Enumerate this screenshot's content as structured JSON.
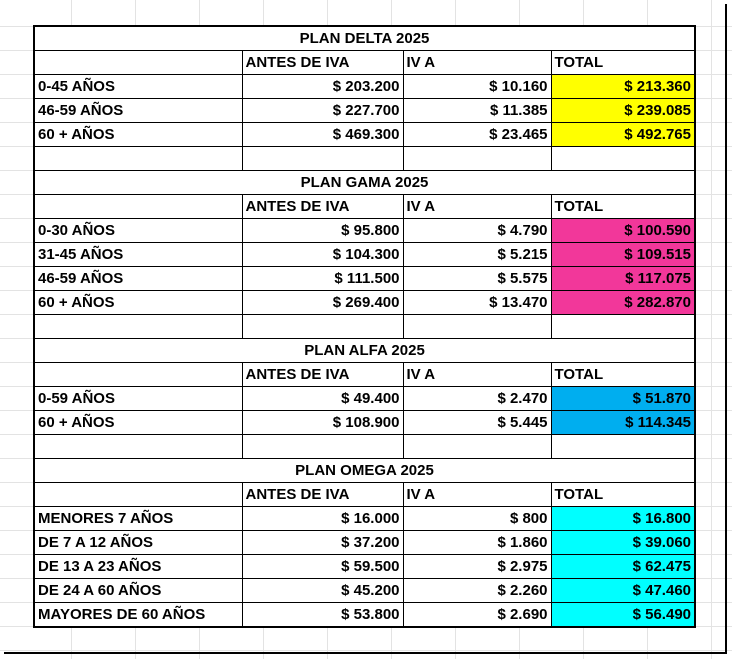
{
  "plans": [
    {
      "title": "PLAN DELTA 2025",
      "headers": [
        "ANTES DE IVA",
        "IV A",
        "TOTAL"
      ],
      "total_color": "#ffff00",
      "rows": [
        {
          "age": "0-45 AÑOS",
          "before_iva": "$ 203.200",
          "iva": "$ 10.160",
          "total": "$ 213.360"
        },
        {
          "age": "46-59 AÑOS",
          "before_iva": "$ 227.700",
          "iva": "$ 11.385",
          "total": "$ 239.085"
        },
        {
          "age": "60 + AÑOS",
          "before_iva": "$ 469.300",
          "iva": "$ 23.465",
          "total": "$ 492.765"
        }
      ]
    },
    {
      "title": "PLAN GAMA 2025",
      "headers": [
        "ANTES DE IVA",
        "IV A",
        "TOTAL"
      ],
      "total_color": "#f2379a",
      "rows": [
        {
          "age": "0-30 AÑOS",
          "before_iva": "$ 95.800",
          "iva": "$ 4.790",
          "total": "$ 100.590"
        },
        {
          "age": "31-45 AÑOS",
          "before_iva": "$ 104.300",
          "iva": "$ 5.215",
          "total": "$ 109.515"
        },
        {
          "age": "46-59 AÑOS",
          "before_iva": "$ 111.500",
          "iva": "$ 5.575",
          "total": "$ 117.075"
        },
        {
          "age": "60 + AÑOS",
          "before_iva": "$ 269.400",
          "iva": "$ 13.470",
          "total": "$ 282.870"
        }
      ]
    },
    {
      "title": "PLAN ALFA 2025",
      "headers": [
        "ANTES DE IVA",
        "IV A",
        "TOTAL"
      ],
      "total_color": "#00aeef",
      "rows": [
        {
          "age": "0-59 AÑOS",
          "before_iva": "$ 49.400",
          "iva": "$ 2.470",
          "total": "$ 51.870"
        },
        {
          "age": "60 + AÑOS",
          "before_iva": "$ 108.900",
          "iva": "$ 5.445",
          "total": "$ 114.345"
        }
      ]
    },
    {
      "title": "PLAN OMEGA 2025",
      "headers": [
        "ANTES DE IVA",
        "IV A",
        "TOTAL"
      ],
      "total_color": "#00ffff",
      "rows": [
        {
          "age": "MENORES 7 AÑOS",
          "before_iva": "$ 16.000",
          "iva": "$ 800",
          "total": "$ 16.800"
        },
        {
          "age": "DE 7 A 12 AÑOS",
          "before_iva": "$ 37.200",
          "iva": "$ 1.860",
          "total": "$ 39.060"
        },
        {
          "age": "DE 13 A 23 AÑOS",
          "before_iva": "$ 59.500",
          "iva": "$ 2.975",
          "total": "$ 62.475"
        },
        {
          "age": "DE 24 A 60 AÑOS",
          "before_iva": "$ 45.200",
          "iva": "$ 2.260",
          "total": "$ 47.460"
        },
        {
          "age": "MAYORES DE 60 AÑOS",
          "before_iva": "$ 53.800",
          "iva": "$ 2.690",
          "total": "$ 56.490"
        }
      ]
    }
  ]
}
